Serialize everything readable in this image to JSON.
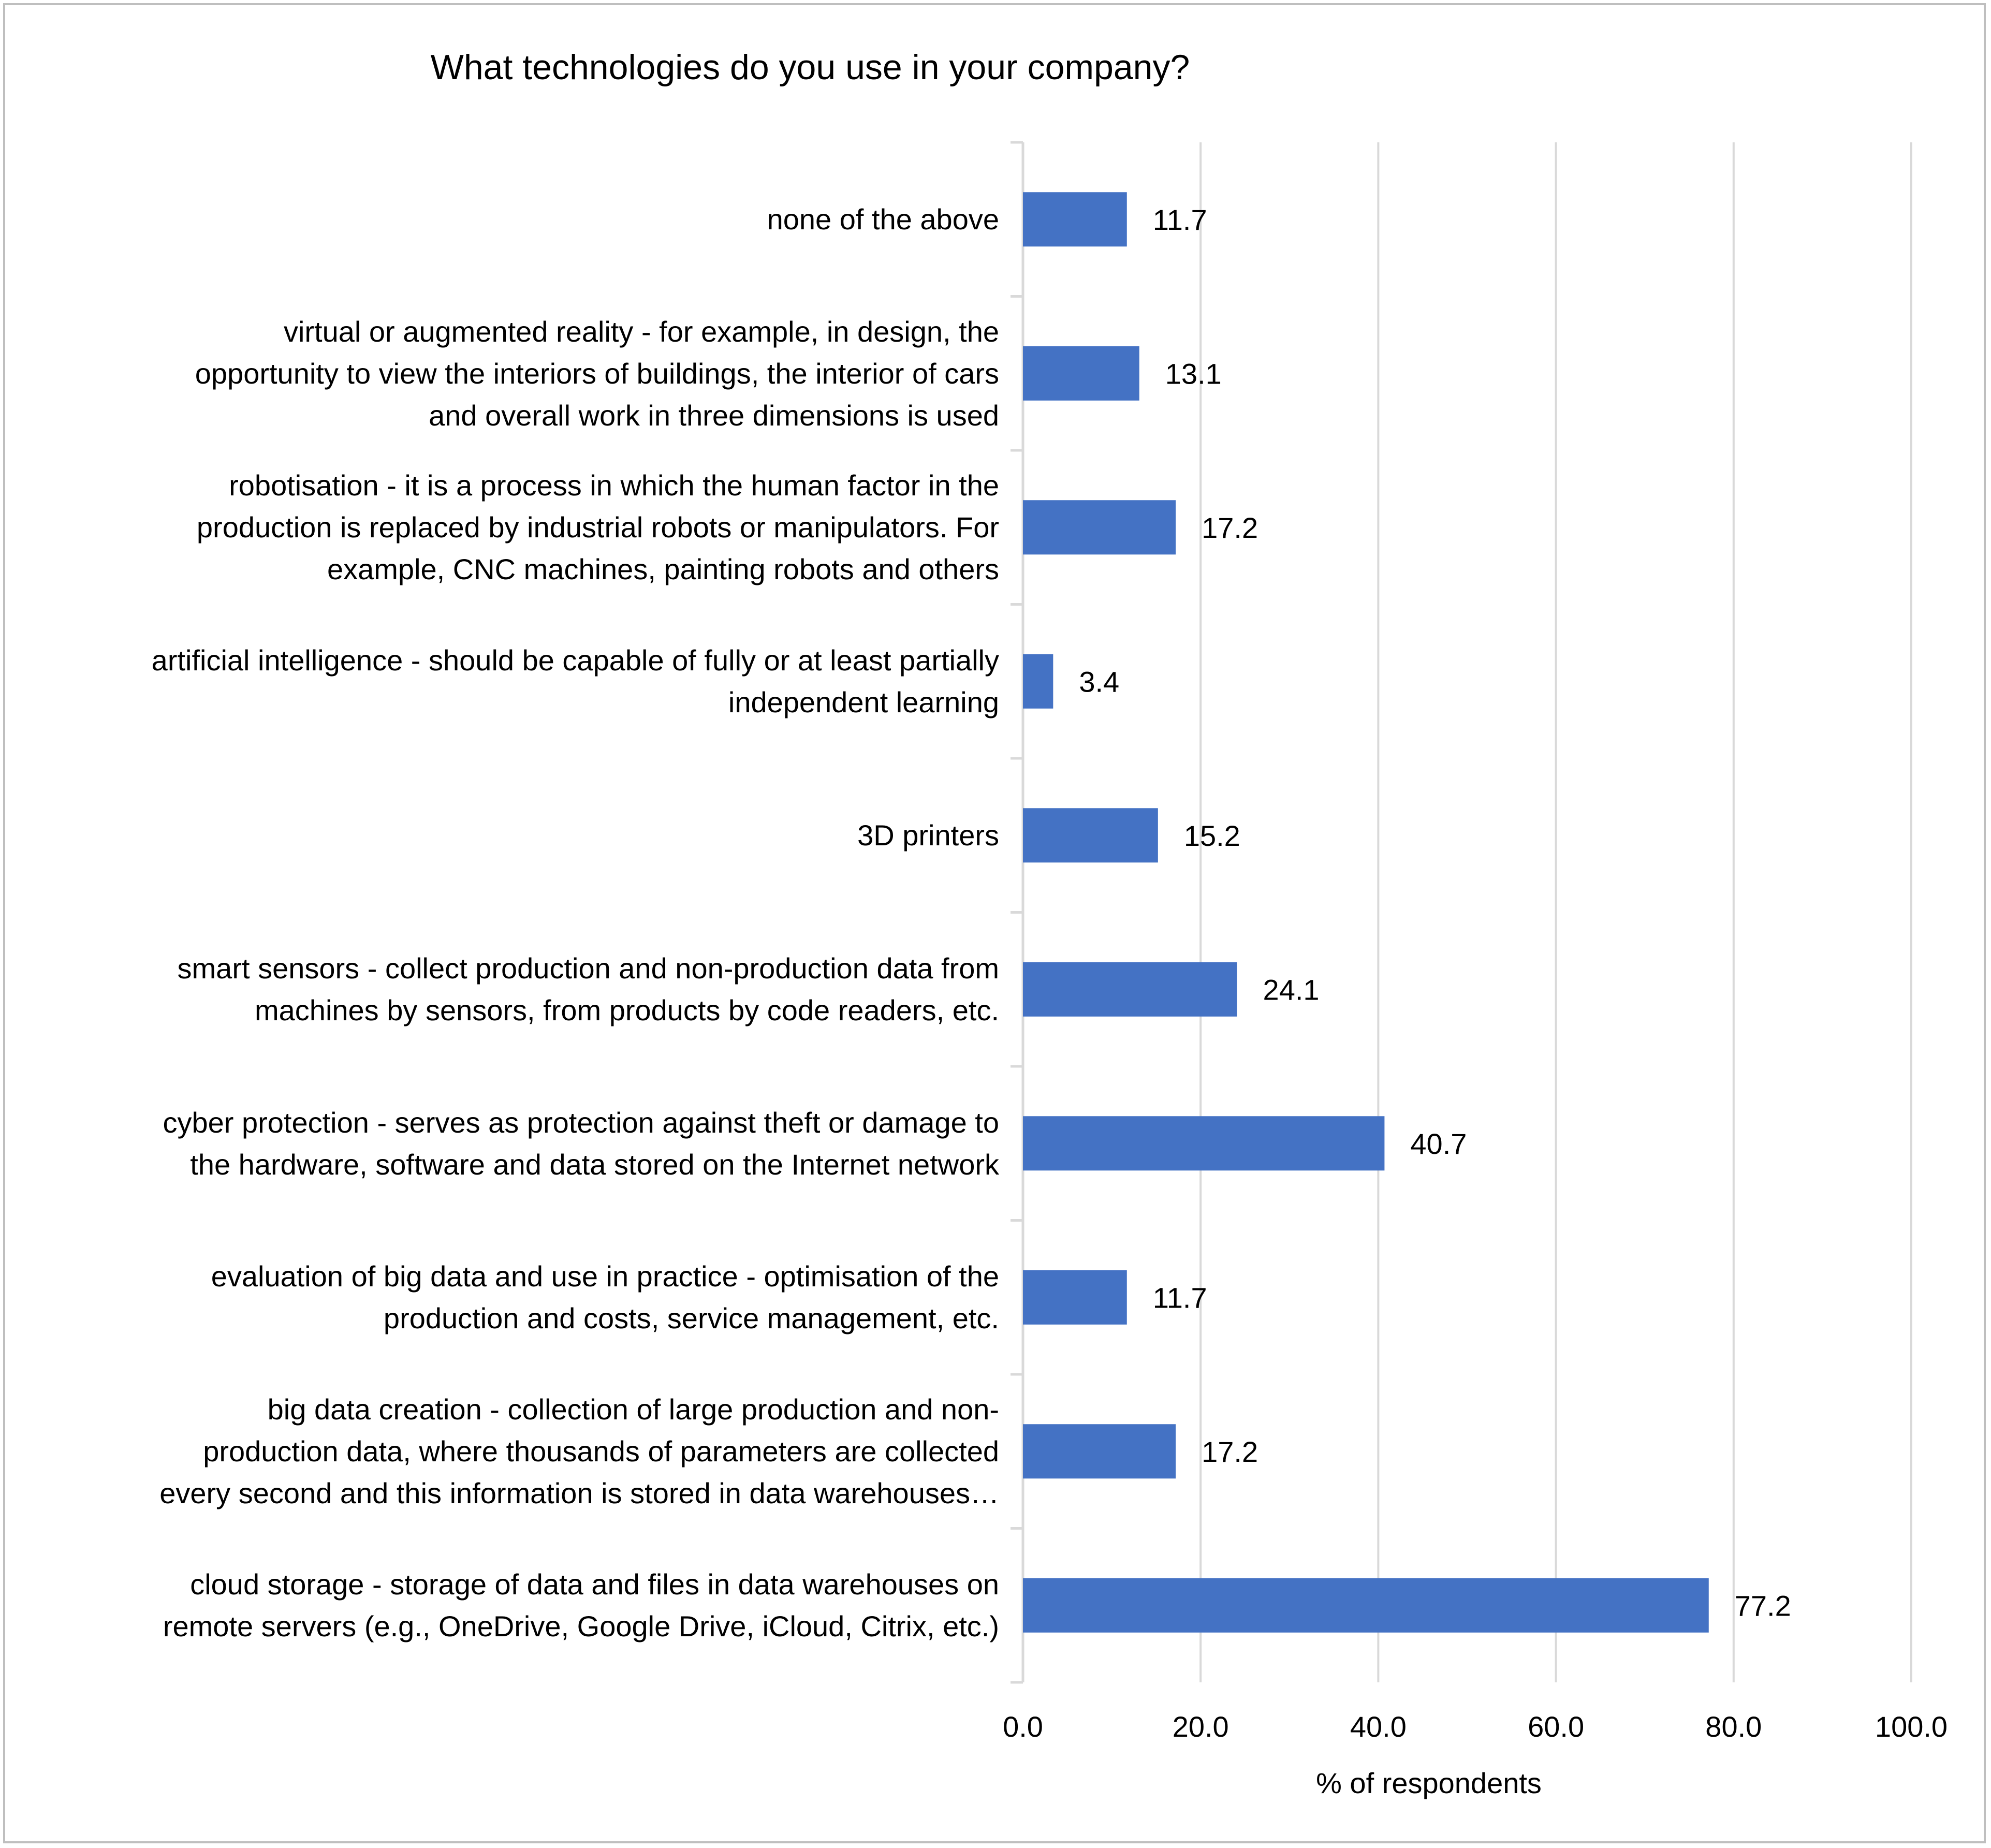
{
  "chart_data": {
    "type": "bar",
    "orientation": "horizontal",
    "title": "What technologies do you use in your company?",
    "xlabel": "% of respondents",
    "ylabel": "",
    "xlim": [
      0,
      100
    ],
    "xticks": [
      "0.0",
      "20.0",
      "40.0",
      "60.0",
      "80.0",
      "100.0"
    ],
    "grid": true,
    "bar_color": "#4472C4",
    "gridline_color": "#d9d9d9",
    "categories": [
      "none of the above",
      "virtual or augmented reality - for example, in design, the\nopportunity to view the interiors of buildings, the interior of cars\nand overall work in three dimensions is used",
      "robotisation - it is a process in which the human factor in the\nproduction is replaced by industrial robots or manipulators. For\nexample, CNC machines, painting robots and others",
      "artificial intelligence - should be capable of fully or at least partially\nindependent learning",
      "3D printers",
      "smart sensors - collect production and non-production data from\nmachines by sensors, from products by code readers, etc.",
      "cyber protection - serves as protection against theft or damage to\nthe hardware, software and data stored on the Internet network",
      "evaluation of big data and use in practice - optimisation of the\nproduction and costs, service management, etc.",
      "big data creation - collection of large production and non-\nproduction data, where thousands of parameters are collected\nevery second and this information is stored in data warehouses…",
      "cloud storage - storage of data and files in data warehouses on\nremote servers (e.g., OneDrive, Google Drive, iCloud, Citrix, etc.)"
    ],
    "values": [
      11.7,
      13.1,
      17.2,
      3.4,
      15.2,
      24.1,
      40.7,
      11.7,
      17.2,
      77.2
    ],
    "value_labels": [
      "11.7",
      "13.1",
      "17.2",
      "3.4",
      "15.2",
      "24.1",
      "40.7",
      "11.7",
      "17.2",
      "77.2"
    ]
  }
}
